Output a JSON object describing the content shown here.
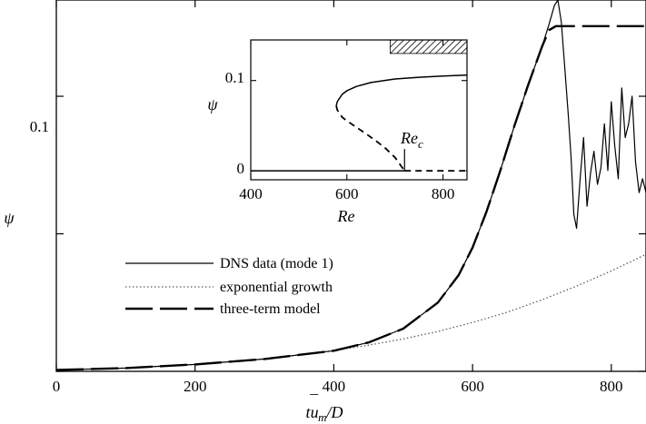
{
  "chart_data": [
    {
      "type": "line",
      "xlabel": "tū_m/D",
      "ylabel": "ψ",
      "xlim": [
        0,
        850
      ],
      "ylim": [
        0,
        0.135
      ],
      "xticks": [
        0,
        200,
        400,
        600,
        800
      ],
      "xtick_labels": [
        "0",
        "200",
        "400",
        "600",
        "800"
      ],
      "yticks": [
        0,
        0.05,
        0.1
      ],
      "ytick_labels": [
        "",
        "",
        "0.1"
      ],
      "legend_position": "center-left",
      "grid": false,
      "series": [
        {
          "name": "DNS data (mode 1)",
          "style": "solid",
          "color": "#000000",
          "x": [
            0,
            100,
            200,
            300,
            400,
            450,
            500,
            550,
            580,
            600,
            620,
            640,
            660,
            680,
            700,
            710,
            718,
            723,
            728,
            733,
            738,
            742,
            746,
            750,
            755,
            760,
            765,
            770,
            775,
            780,
            785,
            790,
            795,
            800,
            805,
            810,
            815,
            820,
            825,
            830,
            835,
            840,
            845,
            850
          ],
          "y": [
            0.0005,
            0.0012,
            0.0025,
            0.0045,
            0.0075,
            0.0105,
            0.0155,
            0.025,
            0.035,
            0.045,
            0.058,
            0.073,
            0.089,
            0.104,
            0.118,
            0.126,
            0.133,
            0.135,
            0.127,
            0.11,
            0.093,
            0.078,
            0.057,
            0.052,
            0.07,
            0.085,
            0.06,
            0.072,
            0.08,
            0.068,
            0.074,
            0.09,
            0.073,
            0.098,
            0.082,
            0.07,
            0.103,
            0.085,
            0.09,
            0.1,
            0.076,
            0.065,
            0.07,
            0.065
          ]
        },
        {
          "name": "exponential growth",
          "style": "dotted",
          "color": "#555555",
          "x": [
            0,
            100,
            200,
            300,
            400,
            450,
            500,
            550,
            600,
            650,
            700,
            750,
            800,
            850
          ],
          "y": [
            0.0005,
            0.0012,
            0.0025,
            0.0045,
            0.0075,
            0.0095,
            0.0118,
            0.0145,
            0.0178,
            0.0215,
            0.026,
            0.031,
            0.0365,
            0.0425
          ]
        },
        {
          "name": "three-term model",
          "style": "dashed",
          "color": "#000000",
          "x": [
            0,
            100,
            200,
            300,
            400,
            450,
            500,
            550,
            580,
            600,
            620,
            640,
            660,
            680,
            700,
            710,
            720,
            730,
            740,
            750,
            800,
            850
          ],
          "y": [
            0.0005,
            0.0012,
            0.0025,
            0.0045,
            0.0075,
            0.0105,
            0.0155,
            0.025,
            0.035,
            0.045,
            0.058,
            0.073,
            0.089,
            0.104,
            0.118,
            0.124,
            0.1255,
            0.1255,
            0.1255,
            0.1255,
            0.1255,
            0.1255
          ]
        }
      ]
    },
    {
      "type": "line",
      "xlabel": "Re",
      "ylabel": "ψ",
      "xlim": [
        400,
        850
      ],
      "ylim": [
        -0.01,
        0.145
      ],
      "xticks": [
        400,
        600,
        800
      ],
      "xtick_labels": [
        "400",
        "600",
        "800"
      ],
      "yticks": [
        0,
        0.1
      ],
      "ytick_labels": [
        "0",
        "0.1"
      ],
      "annotation": "Re_c",
      "annotation_x": 720,
      "hatched_band": {
        "x": [
          690,
          850
        ],
        "y": [
          0.13,
          0.145
        ]
      },
      "series": [
        {
          "style": "solid",
          "x": [
            400,
            850
          ],
          "y": [
            0,
            0
          ]
        },
        {
          "style": "dashed",
          "x": [
            720,
            850
          ],
          "y": [
            0,
            0
          ]
        },
        {
          "style": "solid",
          "x": [
            578,
            580,
            590,
            600,
            620,
            650,
            700,
            750,
            800,
            850
          ],
          "y": [
            0.072,
            0.0766,
            0.0846,
            0.0887,
            0.0935,
            0.0978,
            0.1017,
            0.1036,
            0.105,
            0.106
          ]
        },
        {
          "style": "dashed",
          "x": [
            578,
            580,
            590,
            600,
            620,
            640,
            660,
            680,
            700,
            720
          ],
          "y": [
            0.072,
            0.0674,
            0.0594,
            0.0553,
            0.0481,
            0.0409,
            0.0334,
            0.025,
            0.0149,
            0
          ]
        }
      ]
    }
  ]
}
